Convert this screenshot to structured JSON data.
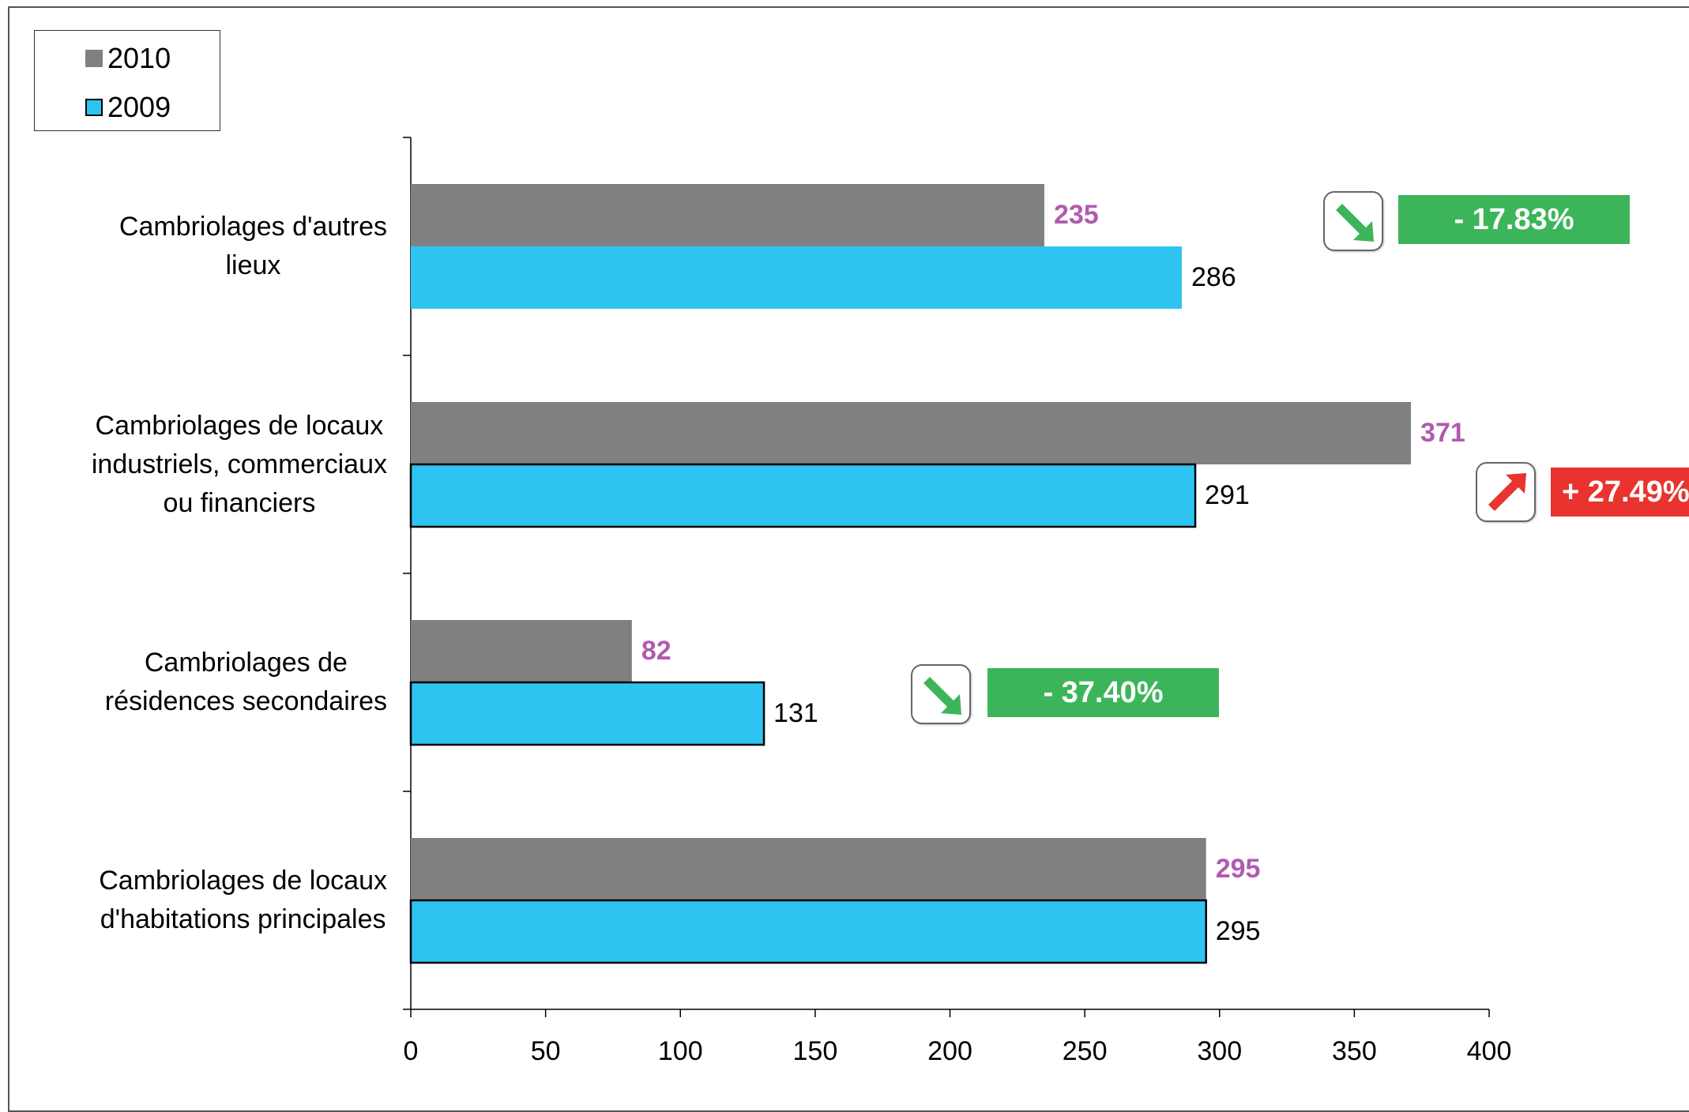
{
  "chart_data": {
    "type": "bar",
    "orientation": "horizontal",
    "categories": [
      [
        "Cambriolages d'autres",
        "lieux"
      ],
      [
        "Cambriolages de  locaux",
        "industriels, commerciaux",
        "ou financiers"
      ],
      [
        "Cambriolages de",
        "résidences secondaires"
      ],
      [
        "Cambriolages de locaux",
        "d'habitations principales"
      ]
    ],
    "series": [
      {
        "name": "2010",
        "color": "#808083",
        "values": [
          235,
          371,
          82,
          295
        ]
      },
      {
        "name": "2009",
        "color": "#2ec4f1",
        "values": [
          286,
          291,
          131,
          295
        ]
      }
    ],
    "xlim": [
      0,
      400
    ],
    "xticks": [
      "0",
      "50",
      "100",
      "150",
      "200",
      "250",
      "300",
      "350",
      "400"
    ],
    "legend_position": "top-left",
    "grid": false,
    "changes": [
      {
        "category_index": 0,
        "text": "- 17.83%",
        "direction": "down",
        "color": "#3cb55a",
        "icon": "arrow-down-right-icon"
      },
      {
        "category_index": 1,
        "text": "+ 27.49%",
        "direction": "up",
        "color": "#e8332f",
        "icon": "arrow-up-right-icon"
      },
      {
        "category_index": 2,
        "text": "- 37.40%",
        "direction": "down",
        "color": "#3cb55a",
        "icon": "arrow-down-right-icon"
      }
    ]
  }
}
